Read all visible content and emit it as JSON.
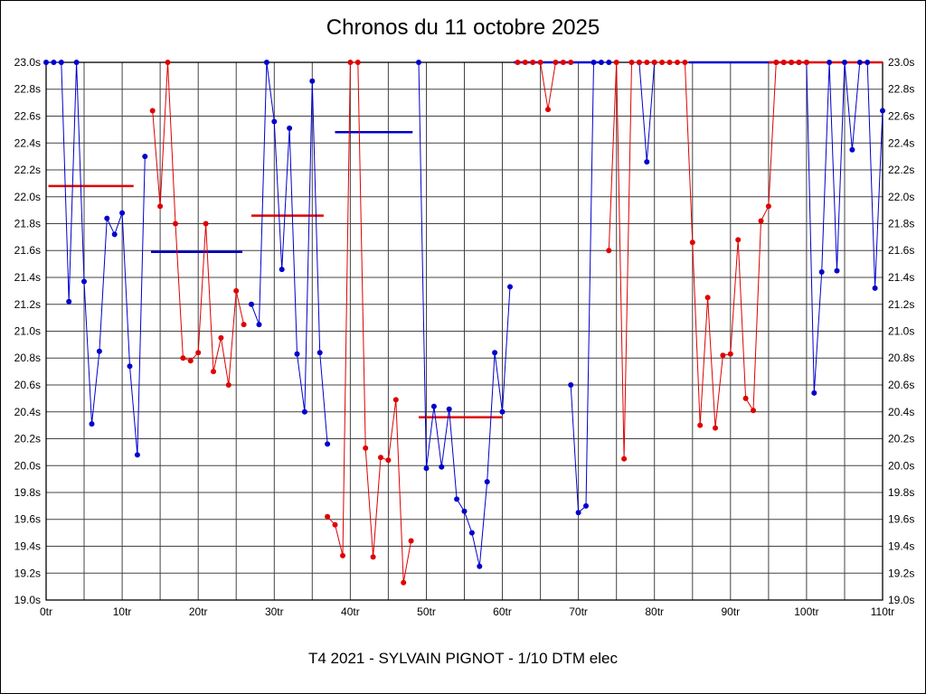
{
  "chart_data": {
    "type": "line",
    "title": "Chronos du 11 octobre 2025",
    "subtitle": "T4 2021 - SYLVAIN PIGNOT - 1/10 DTM elec",
    "x_unit": "tr",
    "y_unit": "s",
    "xlim": [
      0,
      110
    ],
    "ylim": [
      19.0,
      23.0
    ],
    "x_gridline_step": 5,
    "x_label_step": 10,
    "y_tick_step": 0.2,
    "grid": true,
    "colors": {
      "blue": "#0000cc",
      "red": "#e00000",
      "grid": "#444444",
      "axis": "#000000"
    },
    "series": [
      {
        "name": "blue-1",
        "color": "blue",
        "start_lap": 0,
        "values": [
          23.0,
          23.0,
          23.0,
          21.22,
          23.0,
          21.37,
          20.31,
          20.85,
          21.84,
          21.72,
          21.88,
          20.74,
          20.08,
          22.3
        ]
      },
      {
        "name": "blue-2",
        "color": "blue",
        "start_lap": 27,
        "values": [
          21.2,
          21.05,
          23.0,
          22.56,
          21.46,
          22.51,
          20.83,
          20.4,
          22.86,
          20.84,
          20.16
        ]
      },
      {
        "name": "blue-3",
        "color": "blue",
        "start_lap": 49,
        "values": [
          23.0,
          19.98,
          20.44,
          19.99,
          20.42,
          19.75,
          19.66,
          19.5,
          19.25,
          19.88,
          20.84,
          20.4,
          21.33
        ]
      },
      {
        "name": "blue-4",
        "color": "blue",
        "start_lap": 69,
        "values": [
          20.6,
          19.65,
          19.7,
          23.0,
          23.0,
          23.0
        ]
      },
      {
        "name": "blue-5",
        "color": "blue",
        "start_lap": 78,
        "values": [
          23.0,
          22.26,
          23.0
        ]
      },
      {
        "name": "blue-6",
        "color": "blue",
        "start_lap": 96,
        "values": [
          23.0,
          23.0,
          23.0,
          23.0,
          23.0,
          20.54,
          21.44,
          23.0,
          21.45,
          23.0,
          22.35,
          23.0,
          23.0,
          21.32,
          22.64
        ]
      },
      {
        "name": "red-1",
        "color": "red",
        "start_lap": 14,
        "values": [
          22.64,
          21.93,
          23.0,
          21.8,
          20.8,
          20.78,
          20.84,
          21.8,
          20.7,
          20.95,
          20.6,
          21.3,
          21.05
        ]
      },
      {
        "name": "red-2",
        "color": "red",
        "start_lap": 37,
        "values": [
          19.62,
          19.56,
          19.33,
          23.0,
          23.0,
          20.13,
          19.32,
          20.06,
          20.04,
          20.49,
          19.13,
          19.44
        ]
      },
      {
        "name": "red-3",
        "color": "red",
        "start_lap": 62,
        "values": [
          23.0,
          23.0,
          23.0,
          23.0,
          22.65,
          23.0,
          23.0,
          23.0
        ]
      },
      {
        "name": "red-4",
        "color": "red",
        "start_lap": 74,
        "values": [
          21.6,
          23.0,
          20.05,
          23.0,
          23.0,
          23.0,
          23.0,
          23.0,
          23.0,
          23.0,
          23.0,
          21.66,
          20.3,
          21.25,
          20.28,
          20.82,
          20.83,
          21.68,
          20.5,
          20.41,
          21.82,
          21.93,
          23.0,
          23.0,
          23.0,
          23.0,
          23.0
        ]
      }
    ],
    "average_lines": [
      {
        "color": "red",
        "from": 0.3,
        "to": 11.5,
        "value": 22.08
      },
      {
        "color": "blue",
        "from": 13.8,
        "to": 25.8,
        "value": 21.59
      },
      {
        "color": "red",
        "from": 27.0,
        "to": 36.5,
        "value": 21.86
      },
      {
        "color": "blue",
        "from": 38.0,
        "to": 48.2,
        "value": 22.48
      },
      {
        "color": "red",
        "from": 49.0,
        "to": 60.0,
        "value": 20.36
      },
      {
        "color": "blue",
        "from": 61.5,
        "to": 73.0,
        "value": 23.0
      },
      {
        "color": "blue",
        "from": 84.5,
        "to": 95.5,
        "value": 23.0
      },
      {
        "color": "red",
        "from": 95.0,
        "to": 110.0,
        "value": 23.0
      }
    ]
  }
}
